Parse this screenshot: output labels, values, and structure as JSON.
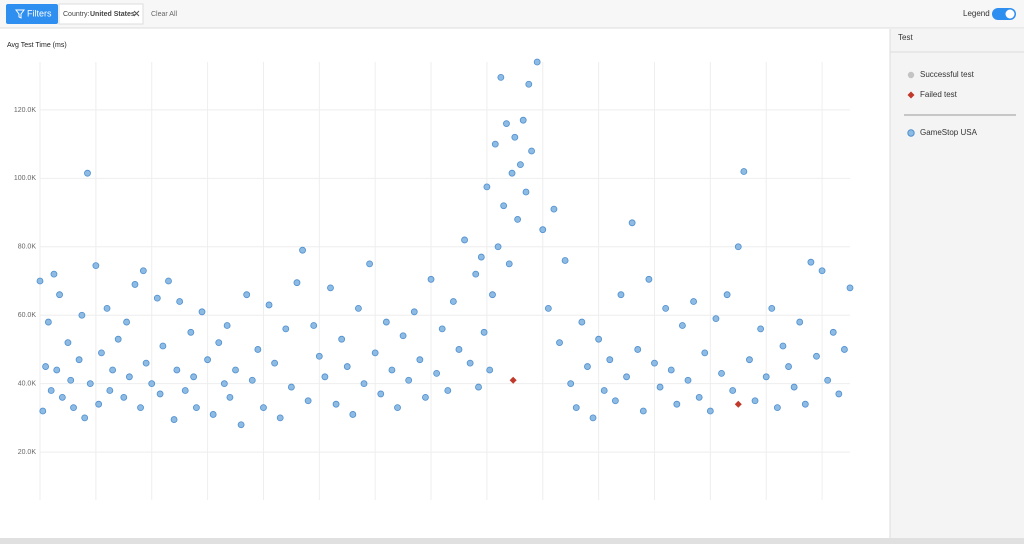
{
  "toolbar": {
    "filters_button": "Filters",
    "filter": {
      "label": "Country:",
      "value": "United States"
    },
    "clear_all": "Clear All",
    "legend_toggle": "Legend"
  },
  "chart_data": {
    "type": "scatter",
    "ylabel": "Avg Test Time (ms)",
    "ylim": [
      6000,
      134000
    ],
    "yticks": [
      {
        "value": 20000,
        "label": "20.0K"
      },
      {
        "value": 40000,
        "label": "40.0K"
      },
      {
        "value": 60000,
        "label": "60.0K"
      },
      {
        "value": 80000,
        "label": "80.0K"
      },
      {
        "value": 100000,
        "label": "100.0K"
      },
      {
        "value": 120000,
        "label": "120.0K"
      }
    ],
    "xlim": [
      0,
      145
    ],
    "grid": true,
    "legend_title": "Test",
    "status_items": [
      {
        "name": "Successful test",
        "color": "#c4c4c4",
        "marker": "circle"
      },
      {
        "name": "Failed test",
        "color": "#c0392b",
        "marker": "diamond"
      }
    ],
    "series": [
      {
        "name": "GameStop USA",
        "color": "#8dbbe3",
        "x": [
          0,
          0.5,
          1,
          1.5,
          2,
          2.5,
          3,
          3.5,
          4,
          5,
          5.5,
          6,
          7,
          7.5,
          8,
          8.5,
          9,
          10,
          10.5,
          11,
          12,
          12.5,
          13,
          14,
          15,
          15.5,
          16,
          17,
          18,
          18.5,
          19,
          20,
          21,
          21.5,
          22,
          23,
          24,
          24.5,
          25,
          26,
          27,
          27.5,
          28,
          29,
          30,
          31,
          32,
          33,
          33.5,
          34,
          35,
          36,
          37,
          38,
          39,
          40,
          41,
          42,
          43,
          44,
          45,
          46,
          47,
          48,
          49,
          50,
          51,
          52,
          53,
          54,
          55,
          56,
          57,
          58,
          59,
          60,
          61,
          62,
          63,
          64,
          65,
          66,
          67,
          68,
          69,
          70,
          71,
          72,
          73,
          74,
          75,
          76,
          77,
          78,
          78.5,
          79,
          79.5,
          80,
          80.5,
          81,
          81.5,
          82,
          82.5,
          83,
          83.5,
          84,
          84.5,
          85,
          85.5,
          86,
          86.5,
          87,
          87.5,
          88,
          89,
          90,
          91,
          92,
          93,
          94,
          95,
          96,
          97,
          98,
          99,
          100,
          101,
          102,
          103,
          104,
          105,
          106,
          107,
          108,
          109,
          110,
          111,
          112,
          113,
          114,
          115,
          116,
          117,
          118,
          119,
          120,
          121,
          122,
          123,
          124,
          125,
          126,
          127,
          128,
          129,
          130,
          131,
          132,
          133,
          134,
          135,
          136,
          137,
          138,
          139,
          140,
          141,
          142,
          143,
          144,
          145
        ],
        "values": [
          70000,
          32000,
          45000,
          58000,
          38000,
          72000,
          44000,
          66000,
          36000,
          52000,
          41000,
          33000,
          47000,
          60000,
          30000,
          101500,
          40000,
          74500,
          34000,
          49000,
          62000,
          38000,
          44000,
          53000,
          36000,
          58000,
          42000,
          69000,
          33000,
          73000,
          46000,
          40000,
          65000,
          37000,
          51000,
          70000,
          29500,
          44000,
          64000,
          38000,
          55000,
          42000,
          33000,
          61000,
          47000,
          31000,
          52000,
          40000,
          57000,
          36000,
          44000,
          28000,
          66000,
          41000,
          50000,
          33000,
          63000,
          46000,
          30000,
          56000,
          39000,
          69500,
          79000,
          35000,
          57000,
          48000,
          42000,
          68000,
          34000,
          53000,
          45000,
          31000,
          62000,
          40000,
          75000,
          49000,
          37000,
          58000,
          44000,
          33000,
          54000,
          41000,
          61000,
          47000,
          36000,
          70500,
          43000,
          56000,
          38000,
          64000,
          50000,
          82000,
          46000,
          72000,
          39000,
          77000,
          55000,
          97500,
          44000,
          66000,
          110000,
          80000,
          129500,
          92000,
          116000,
          75000,
          101500,
          112000,
          88000,
          104000,
          117000,
          96000,
          127500,
          108000,
          134000,
          85000,
          62000,
          91000,
          52000,
          76000,
          40000,
          33000,
          58000,
          45000,
          30000,
          53000,
          38000,
          47000,
          35000,
          66000,
          42000,
          87000,
          50000,
          32000,
          70500,
          46000,
          39000,
          62000,
          44000,
          34000,
          57000,
          41000,
          64000,
          36000,
          49000,
          32000,
          59000,
          43000,
          66000,
          38000,
          80000,
          102000,
          47000,
          35000,
          56000,
          42000,
          62000,
          33000,
          51000,
          45000,
          39000,
          58000,
          34000,
          75500,
          48000,
          73000,
          41000,
          55000,
          37000,
          50000,
          68000
        ]
      }
    ],
    "failed": {
      "color": "#c0392b",
      "x": [
        84.7,
        125
      ],
      "values": [
        41000,
        34000
      ]
    }
  }
}
